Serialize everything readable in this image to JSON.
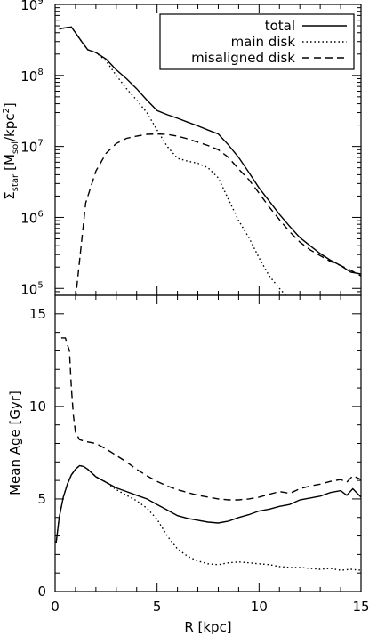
{
  "chart_data": [
    {
      "type": "line",
      "xlim": [
        0,
        15
      ],
      "ylim": [
        80000,
        1000000000
      ],
      "yscale": "log",
      "ylabel_main": "Σ",
      "ylabel_sub": "star",
      "ylabel_units": "[M",
      "ylabel_units_sub": "sol",
      "ylabel_units_tail": "/kpc",
      "ylabel_units_sup": "2",
      "ylabel_close": "]",
      "ytick_base": "10",
      "yticks": [
        {
          "exp": "5",
          "value": 100000
        },
        {
          "exp": "6",
          "value": 1000000
        },
        {
          "exp": "7",
          "value": 10000000
        },
        {
          "exp": "8",
          "value": 100000000
        },
        {
          "exp": "9",
          "value": 1000000000
        }
      ],
      "legend_position": "top-right",
      "series": [
        {
          "name": "total",
          "dash": "solid",
          "x": [
            0.2,
            0.5,
            0.8,
            1.0,
            1.3,
            1.6,
            2.0,
            2.5,
            3.0,
            3.5,
            4.0,
            4.5,
            5.0,
            5.5,
            6.0,
            6.5,
            7.0,
            7.5,
            8.0,
            8.5,
            9.0,
            9.5,
            10.0,
            10.5,
            11.0,
            11.5,
            12.0,
            12.5,
            13.0,
            13.5,
            14.0,
            14.5,
            15.0
          ],
          "y": [
            450000000,
            470000000,
            480000000,
            400000000,
            300000000,
            230000000,
            210000000,
            170000000,
            120000000,
            90000000,
            65000000,
            45000000,
            32000000,
            28000000,
            25000000,
            22000000,
            19500000,
            17000000,
            15000000,
            10500000,
            7000000,
            4300000,
            2600000,
            1700000,
            1100000,
            750000,
            520000,
            400000,
            310000,
            250000,
            210000,
            170000,
            160000
          ]
        },
        {
          "name": "main disk",
          "dash": "dotted",
          "x": [
            0.2,
            0.5,
            0.8,
            1.0,
            1.3,
            1.6,
            2.0,
            2.5,
            3.0,
            3.5,
            4.0,
            4.5,
            5.0,
            5.5,
            6.0,
            6.5,
            7.0,
            7.5,
            8.0,
            8.5,
            9.0,
            9.5,
            10.0,
            10.5,
            11.0,
            11.5
          ],
          "y": [
            450000000,
            470000000,
            480000000,
            400000000,
            300000000,
            230000000,
            210000000,
            160000000,
            100000000,
            65000000,
            45000000,
            30000000,
            17000000,
            10000000,
            6800000,
            6200000,
            5800000,
            5000000,
            3600000,
            1800000,
            900000,
            520000,
            270000,
            150000,
            100000,
            70000
          ]
        },
        {
          "name": "misaligned disk",
          "dash": "dashed",
          "x": [
            1.0,
            1.5,
            2.0,
            2.5,
            3.0,
            3.5,
            4.0,
            4.5,
            5.0,
            5.5,
            6.0,
            6.5,
            7.0,
            7.5,
            8.0,
            8.5,
            9.0,
            9.5,
            10.0,
            10.5,
            11.0,
            11.5,
            12.0,
            12.5,
            13.0,
            13.5,
            14.0,
            14.5,
            15.0
          ],
          "y": [
            70000,
            1600000,
            4500000,
            8000000,
            11000000,
            13000000,
            14000000,
            14800000,
            15000000,
            14800000,
            14000000,
            12800000,
            11500000,
            10300000,
            9000000,
            7000000,
            4800000,
            3400000,
            2200000,
            1400000,
            930000,
            630000,
            450000,
            350000,
            290000,
            240000,
            210000,
            180000,
            150000
          ]
        }
      ]
    },
    {
      "type": "line",
      "xlim": [
        0,
        15
      ],
      "ylim": [
        0,
        16
      ],
      "ylabel": "Mean Age [Gyr]",
      "xlabel": "R [kpc]",
      "xticks": [
        0,
        5,
        10,
        15
      ],
      "yticks": [
        0,
        5,
        10,
        15
      ],
      "series": [
        {
          "name": "total",
          "dash": "solid",
          "x": [
            0.05,
            0.2,
            0.4,
            0.6,
            0.8,
            1.0,
            1.2,
            1.4,
            1.6,
            2.0,
            2.5,
            3.0,
            3.5,
            4.0,
            4.5,
            5.0,
            5.5,
            6.0,
            6.5,
            7.0,
            7.5,
            8.0,
            8.5,
            9.0,
            9.5,
            10.0,
            10.5,
            11.0,
            11.5,
            12.0,
            12.5,
            13.0,
            13.5,
            14.0,
            14.3,
            14.6,
            15.0
          ],
          "y": [
            2.6,
            4.0,
            5.1,
            5.8,
            6.3,
            6.6,
            6.8,
            6.75,
            6.6,
            6.2,
            5.9,
            5.6,
            5.4,
            5.2,
            5.0,
            4.7,
            4.4,
            4.1,
            3.95,
            3.85,
            3.75,
            3.7,
            3.8,
            4.0,
            4.15,
            4.35,
            4.45,
            4.6,
            4.7,
            4.95,
            5.05,
            5.15,
            5.35,
            5.45,
            5.2,
            5.55,
            5.1
          ]
        },
        {
          "name": "main disk",
          "dash": "dotted",
          "x": [
            0.05,
            0.2,
            0.4,
            0.6,
            0.8,
            1.0,
            1.2,
            1.4,
            1.6,
            2.0,
            2.5,
            3.0,
            3.5,
            4.0,
            4.5,
            5.0,
            5.5,
            6.0,
            6.5,
            7.0,
            7.5,
            8.0,
            8.5,
            9.0,
            9.5,
            10.0,
            10.5,
            11.0,
            11.5,
            12.0,
            12.5,
            13.0,
            13.5,
            14.0,
            14.5,
            15.0
          ],
          "y": [
            2.6,
            4.0,
            5.1,
            5.8,
            6.3,
            6.6,
            6.8,
            6.75,
            6.6,
            6.2,
            5.9,
            5.5,
            5.2,
            4.9,
            4.5,
            3.9,
            3.0,
            2.3,
            1.9,
            1.65,
            1.5,
            1.45,
            1.55,
            1.6,
            1.55,
            1.5,
            1.45,
            1.35,
            1.3,
            1.3,
            1.25,
            1.2,
            1.25,
            1.15,
            1.2,
            1.15
          ]
        },
        {
          "name": "misaligned disk",
          "dash": "dashed",
          "x": [
            0.3,
            0.5,
            0.7,
            0.8,
            0.9,
            1.0,
            1.2,
            1.5,
            2.0,
            2.5,
            3.0,
            3.5,
            4.0,
            4.5,
            5.0,
            5.5,
            6.0,
            6.5,
            7.0,
            7.5,
            8.0,
            8.5,
            9.0,
            9.5,
            10.0,
            10.5,
            11.0,
            11.5,
            12.0,
            12.5,
            13.0,
            13.5,
            14.0,
            14.3,
            14.6,
            15.0
          ],
          "y": [
            13.7,
            13.7,
            13.0,
            11.0,
            9.5,
            8.6,
            8.2,
            8.1,
            8.0,
            7.7,
            7.35,
            7.0,
            6.6,
            6.25,
            5.95,
            5.7,
            5.5,
            5.35,
            5.2,
            5.1,
            5.0,
            4.95,
            4.95,
            5.0,
            5.1,
            5.25,
            5.4,
            5.3,
            5.55,
            5.7,
            5.8,
            5.95,
            6.05,
            5.9,
            6.25,
            6.05
          ]
        }
      ]
    }
  ]
}
